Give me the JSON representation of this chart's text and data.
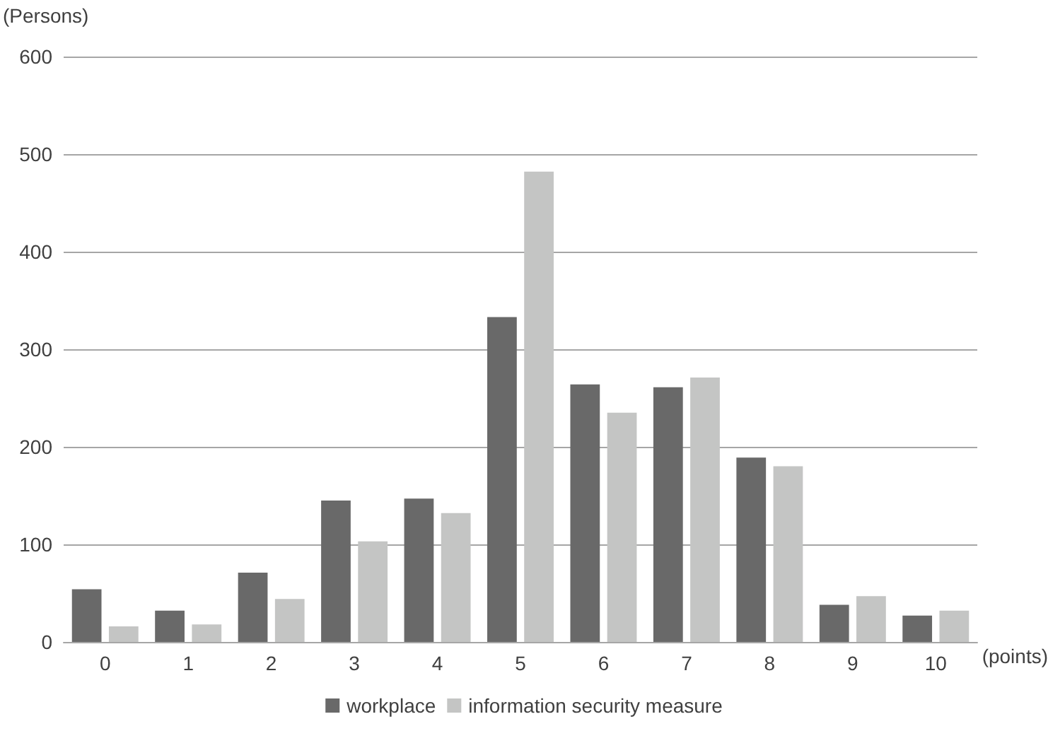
{
  "chart_data": {
    "type": "bar",
    "xlabel": "(points)",
    "ylabel": "(Persons)",
    "categories": [
      "0",
      "1",
      "2",
      "3",
      "4",
      "5",
      "6",
      "7",
      "8",
      "9",
      "10"
    ],
    "series": [
      {
        "name": "workplace",
        "color": "#696969",
        "values": [
          54,
          32,
          71,
          145,
          147,
          333,
          264,
          261,
          189,
          38,
          27
        ]
      },
      {
        "name": "information security measure",
        "color": "#c4c5c4",
        "values": [
          16,
          18,
          44,
          103,
          132,
          482,
          235,
          271,
          180,
          47,
          32
        ]
      }
    ],
    "ylim": [
      0,
      600
    ],
    "yticks": [
      0,
      100,
      200,
      300,
      400,
      500,
      600
    ],
    "grid": "y",
    "legend": "bottom"
  }
}
